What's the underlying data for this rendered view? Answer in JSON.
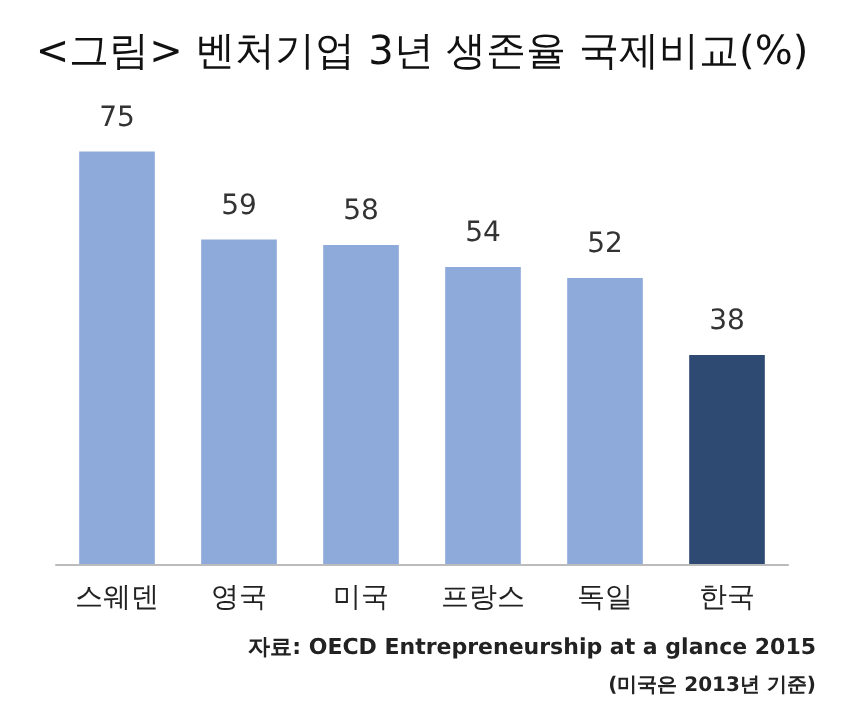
{
  "chart_data": {
    "type": "bar",
    "title": "<그림> 벤처기업 3년 생존율 국제비교(%)",
    "categories": [
      "스웨덴",
      "영국",
      "미국",
      "프랑스",
      "독일",
      "한국"
    ],
    "values": [
      75,
      59,
      58,
      54,
      52,
      38
    ],
    "colors": [
      "#8eaadb",
      "#8eaadb",
      "#8eaadb",
      "#8eaadb",
      "#8eaadb",
      "#2e4a73"
    ],
    "data_labels": true,
    "annotations": [
      "자료: OECD Entrepreneurship at a glance 2015",
      "(미국은 2013년 기준)"
    ]
  }
}
